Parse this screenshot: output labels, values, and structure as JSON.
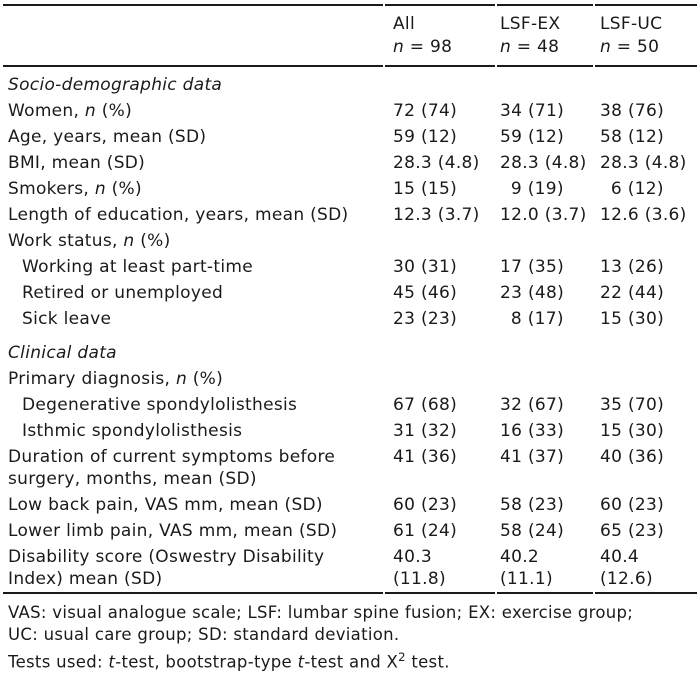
{
  "colors": {
    "text": "#1a1a1a",
    "rule": "#1a1a1a",
    "background": "#ffffff"
  },
  "table": {
    "header": {
      "columns": [
        {
          "title": "All",
          "n": "_n_ = 98"
        },
        {
          "title": "LSF-EX",
          "n": "_n_ = 48"
        },
        {
          "title": "LSF-UC",
          "n": "_n_ = 50"
        }
      ]
    },
    "rows": [
      {
        "type": "section",
        "label": "Socio-demographic data"
      },
      {
        "type": "data",
        "indent": 0,
        "label": "Women, _n_ (%)",
        "values": [
          [
            "72",
            "(74)"
          ],
          [
            "34",
            "(71)"
          ],
          [
            "38",
            "(76)"
          ]
        ]
      },
      {
        "type": "data",
        "indent": 0,
        "label": "Age, years, mean (SD)",
        "values": [
          [
            "59",
            "(12)"
          ],
          [
            "59",
            "(12)"
          ],
          [
            "58",
            "(12)"
          ]
        ]
      },
      {
        "type": "data",
        "indent": 0,
        "label": "BMI, mean (SD)",
        "values": [
          [
            "28.3",
            "(4.8)"
          ],
          [
            "28.3",
            "(4.8)"
          ],
          [
            "28.3",
            "(4.8)"
          ]
        ]
      },
      {
        "type": "data",
        "indent": 0,
        "label": "Smokers, _n_ (%)",
        "values": [
          [
            "15",
            "(15)"
          ],
          [
            "9",
            "(19)"
          ],
          [
            "6",
            "(12)"
          ]
        ]
      },
      {
        "type": "data",
        "indent": 0,
        "label": "Length of education, years, mean (SD)",
        "values": [
          [
            "12.3",
            "(3.7)"
          ],
          [
            "12.0",
            "(3.7)"
          ],
          [
            "12.6",
            "(3.6)"
          ]
        ]
      },
      {
        "type": "data",
        "indent": 0,
        "label": "Work status, _n_ (%)",
        "values": []
      },
      {
        "type": "data",
        "indent": 1,
        "label": "Working at least part-time",
        "values": [
          [
            "30",
            "(31)"
          ],
          [
            "17",
            "(35)"
          ],
          [
            "13",
            "(26)"
          ]
        ]
      },
      {
        "type": "data",
        "indent": 1,
        "label": "Retired or unemployed",
        "values": [
          [
            "45",
            "(46)"
          ],
          [
            "23",
            "(48)"
          ],
          [
            "22",
            "(44)"
          ]
        ]
      },
      {
        "type": "data",
        "indent": 1,
        "label": "Sick leave",
        "values": [
          [
            "23",
            "(23)"
          ],
          [
            "8",
            "(17)"
          ],
          [
            "15",
            "(30)"
          ]
        ]
      },
      {
        "type": "section",
        "label": "Clinical data",
        "gap_before": true
      },
      {
        "type": "data",
        "indent": 0,
        "label": "Primary diagnosis, _n_ (%)",
        "values": []
      },
      {
        "type": "data",
        "indent": 1,
        "label": "Degenerative spondylolisthesis",
        "values": [
          [
            "67",
            "(68)"
          ],
          [
            "32",
            "(67)"
          ],
          [
            "35",
            "(70)"
          ]
        ]
      },
      {
        "type": "data",
        "indent": 1,
        "label": "Isthmic spondylolisthesis",
        "values": [
          [
            "31",
            "(32)"
          ],
          [
            "16",
            "(33)"
          ],
          [
            "15",
            "(30)"
          ]
        ]
      },
      {
        "type": "data",
        "indent": 0,
        "label": "Duration of current symptoms before surgery, months, mean (SD)",
        "values": [
          [
            "41",
            "(36)"
          ],
          [
            "41",
            "(37)"
          ],
          [
            "40",
            "(36)"
          ]
        ]
      },
      {
        "type": "data",
        "indent": 0,
        "label": "Low back pain, VAS mm, mean (SD)",
        "values": [
          [
            "60",
            "(23)"
          ],
          [
            "58",
            "(23)"
          ],
          [
            "60",
            "(23)"
          ]
        ]
      },
      {
        "type": "data",
        "indent": 0,
        "label": "Lower limb pain, VAS mm, mean (SD)",
        "values": [
          [
            "61",
            "(24)"
          ],
          [
            "58",
            "(24)"
          ],
          [
            "65",
            "(23)"
          ]
        ]
      },
      {
        "type": "data",
        "indent": 0,
        "label": "Disability score (Oswestry Disability Index) mean (SD)",
        "stacked": true,
        "values": [
          [
            "40.3",
            "(11.8)"
          ],
          [
            "40.2",
            "(11.1)"
          ],
          [
            "40.4",
            "(12.6)"
          ]
        ]
      }
    ]
  },
  "footnotes": [
    "VAS: visual analogue scale; LSF: lumbar spine fusion; EX: exercise group;",
    "UC: usual care group; SD: standard deviation.",
    "Tests used: _t_-test, bootstrap-type _t_-test and X^2^ test."
  ]
}
